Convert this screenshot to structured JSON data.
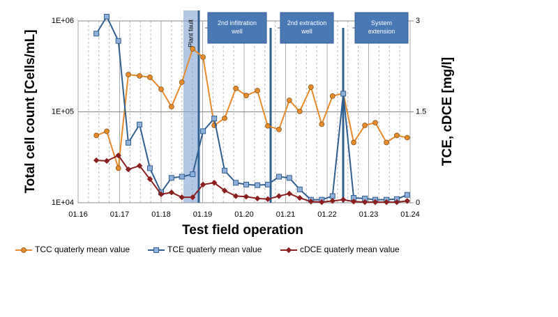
{
  "chart_data": {
    "type": "line",
    "xlabel": "Test field operation",
    "ylabel": "Total cell count [Cells/mL]",
    "y2label": "TCE, cDCE [mg/l]",
    "log_y": true,
    "grid": true,
    "legend": "bottom",
    "x": [
      2016.44,
      2016.69,
      2016.97,
      2017.21,
      2017.48,
      2017.73,
      2018.0,
      2018.25,
      2018.5,
      2018.76,
      2019.01,
      2019.28,
      2019.53,
      2019.8,
      2020.05,
      2020.32,
      2020.57,
      2020.84,
      2021.09,
      2021.34,
      2021.61,
      2021.87,
      2022.13,
      2022.39,
      2022.64,
      2022.91,
      2023.16,
      2023.43,
      2023.68,
      2023.93
    ],
    "xlim": [
      2016,
      2024
    ],
    "xticks": [
      {
        "value": 2016,
        "label": "01.16"
      },
      {
        "value": 2017,
        "label": "01.17"
      },
      {
        "value": 2018,
        "label": "01.18"
      },
      {
        "value": 2019,
        "label": "01.19"
      },
      {
        "value": 2020,
        "label": "01.20"
      },
      {
        "value": 2021,
        "label": "01.21"
      },
      {
        "value": 2022,
        "label": "01.22"
      },
      {
        "value": 2023,
        "label": "01.23"
      },
      {
        "value": 2024,
        "label": "01.24"
      }
    ],
    "ylim": [
      10000,
      1000000
    ],
    "yticks": [
      {
        "value": 10000,
        "label": "1E+04"
      },
      {
        "value": 100000,
        "label": "1E+05"
      },
      {
        "value": 1000000,
        "label": "1E+06"
      }
    ],
    "y2lim": [
      0,
      3
    ],
    "y2ticks": [
      0,
      1.5,
      3
    ],
    "series": [
      {
        "name": "TCC quaterly mean value",
        "color": "#e8892a",
        "marker": "circle",
        "values": [
          55000,
          61000,
          24000,
          257000,
          248000,
          240000,
          177000,
          114000,
          212000,
          494000,
          400000,
          71000,
          85000,
          181000,
          151000,
          171000,
          70000,
          64000,
          134000,
          101000,
          187000,
          73000,
          149000,
          160000,
          46000,
          71000,
          76000,
          46000,
          55000,
          52000
        ]
      },
      {
        "name": "TCE quaterly mean value",
        "color": "#2f5f8f",
        "marker": "square",
        "axis": "y2",
        "values": [
          2.79,
          3.07,
          2.67,
          0.99,
          1.29,
          0.57,
          0.17,
          0.41,
          0.43,
          0.47,
          1.18,
          1.39,
          0.53,
          0.33,
          0.3,
          0.29,
          0.3,
          0.43,
          0.41,
          0.22,
          0.05,
          0.05,
          0.11,
          1.8,
          0.08,
          0.07,
          0.05,
          0.05,
          0.06,
          0.13
        ]
      },
      {
        "name": "cDCE quaterly mean value",
        "color": "#8b1e1e",
        "marker": "diamond",
        "axis": "y2",
        "values": [
          0.7,
          0.69,
          0.78,
          0.55,
          0.61,
          0.39,
          0.14,
          0.17,
          0.09,
          0.09,
          0.3,
          0.33,
          0.2,
          0.11,
          0.1,
          0.07,
          0.06,
          0.11,
          0.15,
          0.08,
          0.02,
          0.01,
          0.03,
          0.05,
          0.02,
          0.01,
          0.01,
          0.01,
          0.01,
          0.03
        ]
      }
    ],
    "annotations": [
      "Plant fault",
      "2nd infiltration well",
      "2nd extraction well",
      "System extension"
    ]
  }
}
